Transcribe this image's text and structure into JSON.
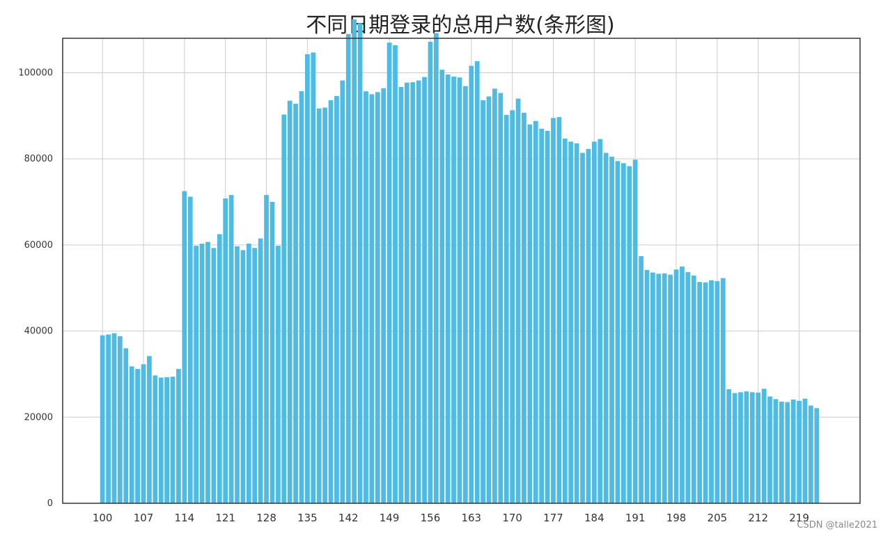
{
  "watermark": "CSDN @talle2021",
  "colors": {
    "bar": "#4dbbe3",
    "grid": "#cccccc",
    "frame": "#333333"
  },
  "chart_data": {
    "type": "bar",
    "title": "不同日期登录的总用户数(条形图)",
    "xlabel": "",
    "ylabel": "",
    "grid": true,
    "ylim": [
      0,
      108000
    ],
    "yticks": [
      0,
      20000,
      40000,
      60000,
      80000,
      100000
    ],
    "xticks": [
      100,
      107,
      114,
      121,
      128,
      135,
      142,
      149,
      156,
      163,
      170,
      177,
      184,
      191,
      198,
      205,
      212,
      219
    ],
    "x": [
      100,
      101,
      102,
      103,
      104,
      105,
      106,
      107,
      108,
      109,
      110,
      111,
      112,
      113,
      114,
      115,
      116,
      117,
      118,
      119,
      120,
      121,
      122,
      123,
      124,
      125,
      126,
      127,
      128,
      129,
      130,
      131,
      132,
      133,
      134,
      135,
      136,
      137,
      138,
      139,
      140,
      141,
      142,
      143,
      144,
      145,
      146,
      147,
      148,
      149,
      150,
      151,
      152,
      153,
      154,
      155,
      156,
      157,
      158,
      159,
      160,
      161,
      162,
      163,
      164,
      165,
      166,
      167,
      168,
      169,
      170,
      171,
      172,
      173,
      174,
      175,
      176,
      177,
      178,
      179,
      180,
      181,
      182,
      183,
      184,
      185,
      186,
      187,
      188,
      189,
      190,
      191,
      192,
      193,
      194,
      195,
      196,
      197,
      198,
      199,
      200,
      201,
      202,
      203,
      204,
      205,
      206,
      207,
      208,
      209,
      210,
      211,
      212,
      213,
      214,
      215,
      216,
      217,
      218,
      219,
      220,
      221,
      222
    ],
    "values": [
      39000,
      39200,
      39500,
      38800,
      36000,
      31800,
      31200,
      32300,
      34200,
      29700,
      29200,
      29300,
      29400,
      31200,
      72500,
      71200,
      59800,
      60300,
      60700,
      59300,
      62500,
      70800,
      71600,
      59700,
      58800,
      60300,
      59300,
      61500,
      71600,
      70000,
      59800,
      90300,
      93500,
      92800,
      95700,
      104300,
      104700,
      91700,
      91900,
      93600,
      94600,
      98200,
      109000,
      112400,
      111500,
      95700,
      95000,
      95500,
      96400,
      107000,
      106400,
      96700,
      97700,
      97800,
      98200,
      99000,
      107200,
      109200,
      100700,
      99600,
      99100,
      98900,
      96900,
      101600,
      102700,
      93600,
      94500,
      96300,
      95300,
      90200,
      91300,
      94000,
      90700,
      88000,
      88800,
      87000,
      86500,
      89500,
      89700,
      84700,
      84000,
      83600,
      81400,
      82300,
      84000,
      84600,
      81400,
      80500,
      79500,
      79000,
      78300,
      79800,
      57400,
      54200,
      53600,
      53300,
      53400,
      53100,
      54300,
      55000,
      53700,
      52900,
      51400,
      51300,
      51800,
      51600,
      52300,
      26500,
      25600,
      25800,
      26000,
      25800,
      25700,
      26600,
      24800,
      24200,
      23600,
      23500,
      24100,
      23800,
      24300,
      22700,
      22100
    ]
  }
}
